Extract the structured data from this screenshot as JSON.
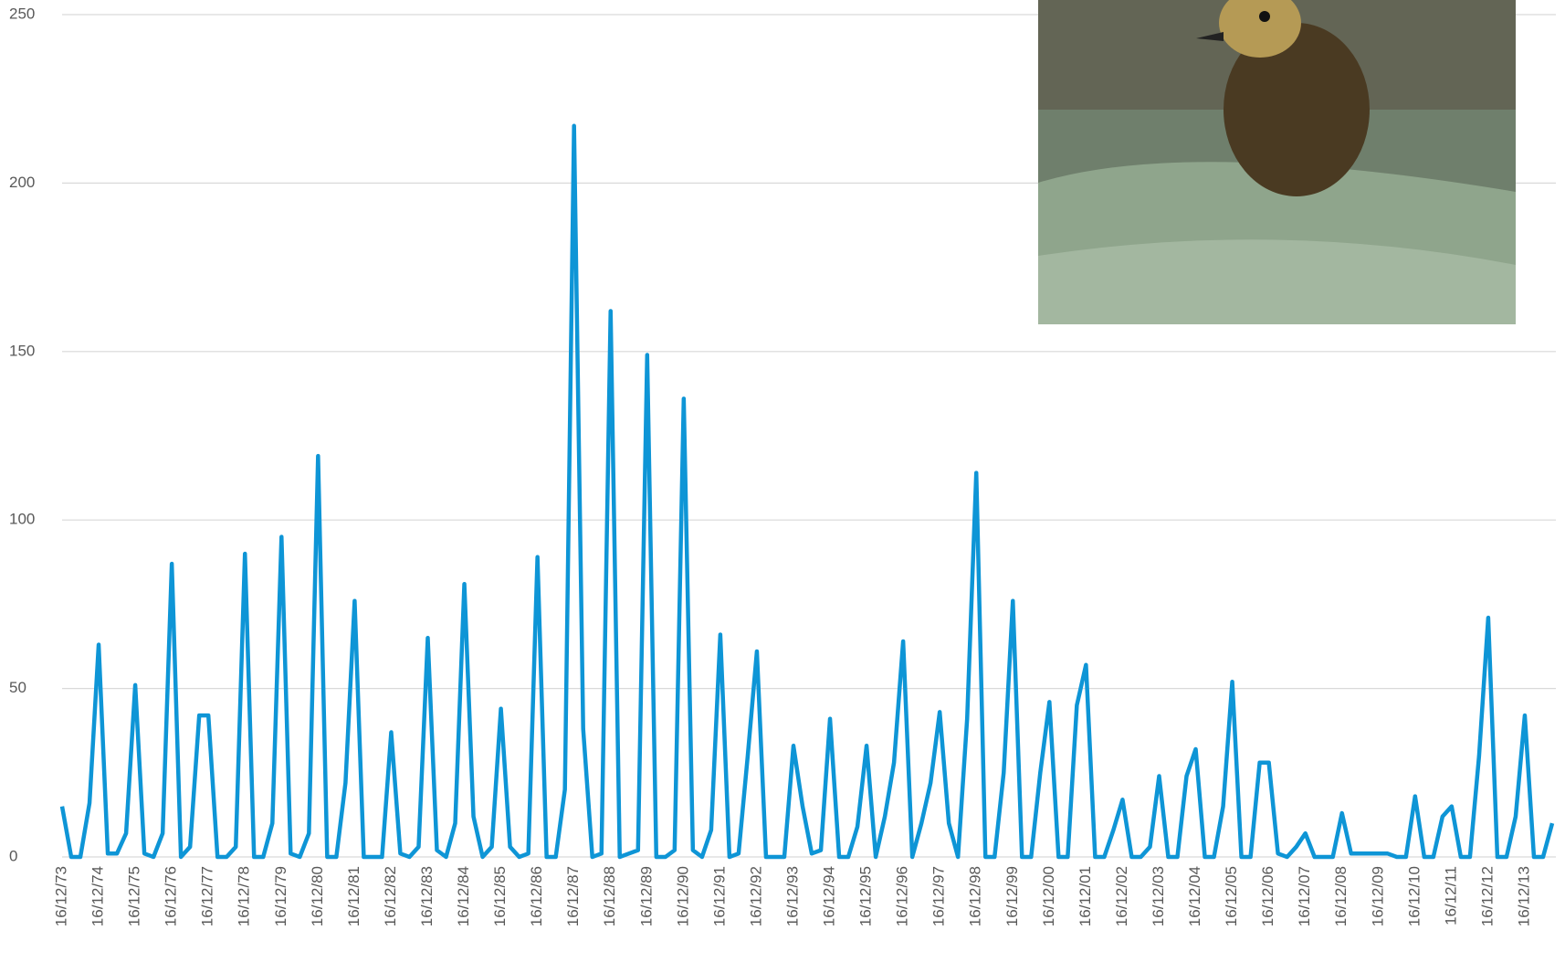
{
  "chart_data": {
    "type": "line",
    "categories": [
      "16/12/73",
      null,
      null,
      null,
      "16/12/74",
      null,
      null,
      null,
      "16/12/75",
      null,
      null,
      null,
      "16/12/76",
      null,
      null,
      null,
      "16/12/77",
      null,
      null,
      null,
      "16/12/78",
      null,
      null,
      null,
      "16/12/79",
      null,
      null,
      null,
      "16/12/80",
      null,
      null,
      null,
      "16/12/81",
      null,
      null,
      null,
      "16/12/82",
      null,
      null,
      null,
      "16/12/83",
      null,
      null,
      null,
      "16/12/84",
      null,
      null,
      null,
      "16/12/85",
      null,
      null,
      null,
      "16/12/86",
      null,
      null,
      null,
      "16/12/87",
      null,
      null,
      null,
      "16/12/88",
      null,
      null,
      null,
      "16/12/89",
      null,
      null,
      null,
      "16/12/90",
      null,
      null,
      null,
      "16/12/91",
      null,
      null,
      null,
      "16/12/92",
      null,
      null,
      null,
      "16/12/93",
      null,
      null,
      null,
      "16/12/94",
      null,
      null,
      null,
      "16/12/95",
      null,
      null,
      null,
      "16/12/96",
      null,
      null,
      null,
      "16/12/97",
      null,
      null,
      null,
      "16/12/98",
      null,
      null,
      null,
      "16/12/99",
      null,
      null,
      null,
      "16/12/00",
      null,
      null,
      null,
      "16/12/01",
      null,
      null,
      null,
      "16/12/02",
      null,
      null,
      null,
      "16/12/03",
      null,
      null,
      null,
      "16/12/04",
      null,
      null,
      null,
      "16/12/05",
      null,
      null,
      null,
      "16/12/06",
      null,
      null,
      null,
      "16/12/07",
      null,
      null,
      null,
      "16/12/08",
      null,
      null,
      null,
      "16/12/09",
      null,
      null,
      null,
      "16/12/10",
      null,
      null,
      null,
      "16/12/11",
      null,
      null,
      null,
      "16/12/12",
      null,
      null,
      null,
      "16/12/13",
      null,
      null,
      null
    ],
    "series": [
      {
        "color": "#0e95d6",
        "values": [
          15,
          0,
          0,
          16,
          63,
          1,
          1,
          7,
          51,
          1,
          0,
          7,
          87,
          0,
          3,
          42,
          42,
          0,
          0,
          3,
          90,
          0,
          0,
          10,
          95,
          1,
          0,
          7,
          119,
          0,
          0,
          22,
          76,
          0,
          0,
          0,
          37,
          1,
          0,
          3,
          65,
          2,
          0,
          10,
          81,
          12,
          0,
          3,
          44,
          3,
          0,
          1,
          89,
          0,
          0,
          20,
          217,
          38,
          0,
          1,
          162,
          0,
          1,
          2,
          149,
          0,
          0,
          2,
          136,
          2,
          0,
          8,
          66,
          0,
          1,
          30,
          61,
          0,
          0,
          0,
          33,
          15,
          1,
          2,
          41,
          0,
          0,
          9,
          33,
          0,
          12,
          28,
          64,
          0,
          10,
          22,
          43,
          10,
          0,
          41,
          114,
          0,
          0,
          25,
          76,
          0,
          0,
          25,
          46,
          0,
          0,
          45,
          57,
          0,
          0,
          8,
          17,
          0,
          0,
          3,
          24,
          0,
          0,
          24,
          32,
          0,
          0,
          15,
          52,
          0,
          0,
          28,
          28,
          1,
          0,
          3,
          7,
          0,
          0,
          0,
          13,
          1,
          1,
          1,
          1,
          1,
          0,
          0,
          18,
          0,
          0,
          12,
          15,
          0,
          0,
          30,
          71,
          0,
          0,
          12,
          42,
          0,
          0,
          10
        ]
      }
    ],
    "ylim": [
      0,
      250
    ],
    "yticks": [
      0,
      50,
      100,
      150,
      200,
      250
    ],
    "grid": true
  }
}
